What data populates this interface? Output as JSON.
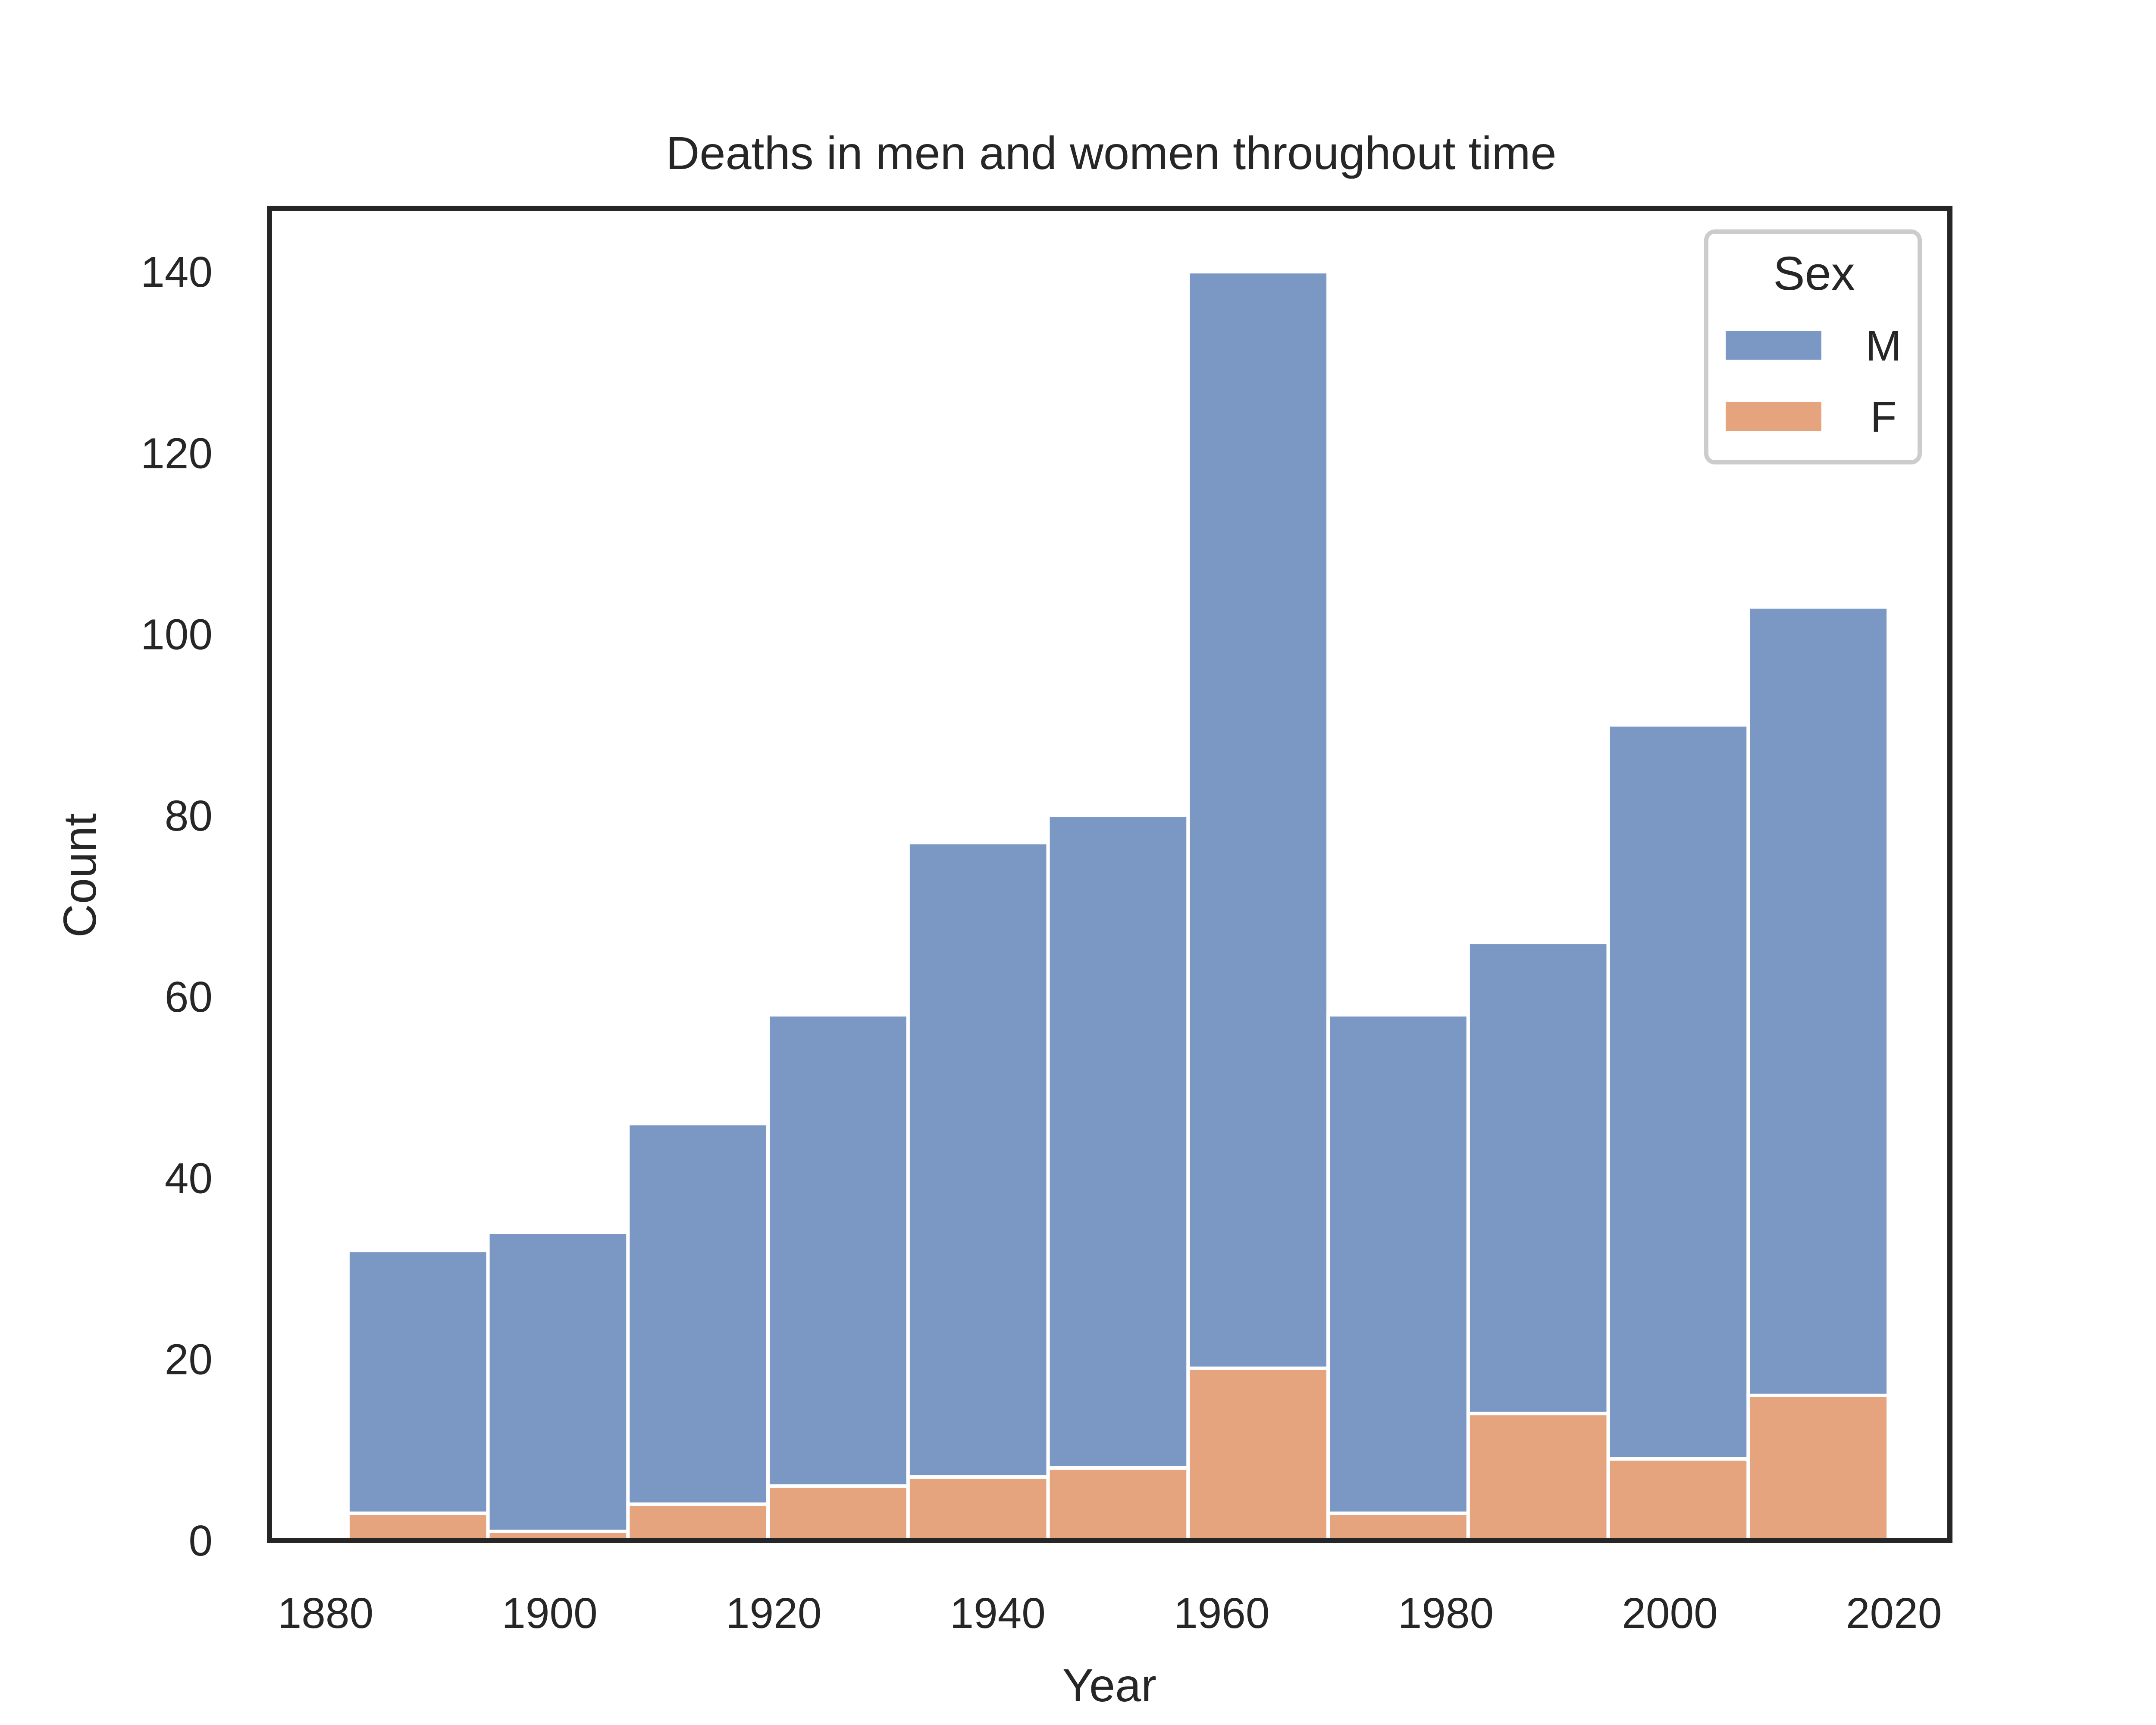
{
  "chart_data": {
    "type": "bar",
    "stacked": true,
    "title": "Deaths in men and women throughout time",
    "xlabel": "Year",
    "ylabel": "Count",
    "x_bin_edges": [
      1882,
      1894.5,
      1907,
      1919.5,
      1932,
      1944.5,
      1957,
      1969.5,
      1982,
      1994.5,
      2007,
      2019.5
    ],
    "xlim": [
      1875,
      2025
    ],
    "ylim": [
      0,
      147
    ],
    "xticks": [
      "1880",
      "1900",
      "1920",
      "1940",
      "1960",
      "1980",
      "2000",
      "2020"
    ],
    "yticks": [
      "0",
      "20",
      "40",
      "60",
      "80",
      "100",
      "120",
      "140"
    ],
    "series": [
      {
        "name": "F",
        "color": "#e5a47d",
        "values": [
          3,
          1,
          4,
          6,
          7,
          8,
          19,
          3,
          14,
          9,
          16
        ]
      },
      {
        "name": "M",
        "color": "#7b98c4",
        "values": [
          29,
          33,
          42,
          52,
          70,
          72,
          121,
          55,
          52,
          81,
          87
        ]
      }
    ],
    "totals": [
      32,
      34,
      46,
      58,
      77,
      80,
      140,
      58,
      66,
      90,
      103
    ],
    "legend": {
      "title": "Sex",
      "entries": [
        {
          "label": "M",
          "color": "#7b98c4"
        },
        {
          "label": "F",
          "color": "#e5a47d"
        }
      ],
      "placement": "top-right"
    },
    "grid": false
  }
}
